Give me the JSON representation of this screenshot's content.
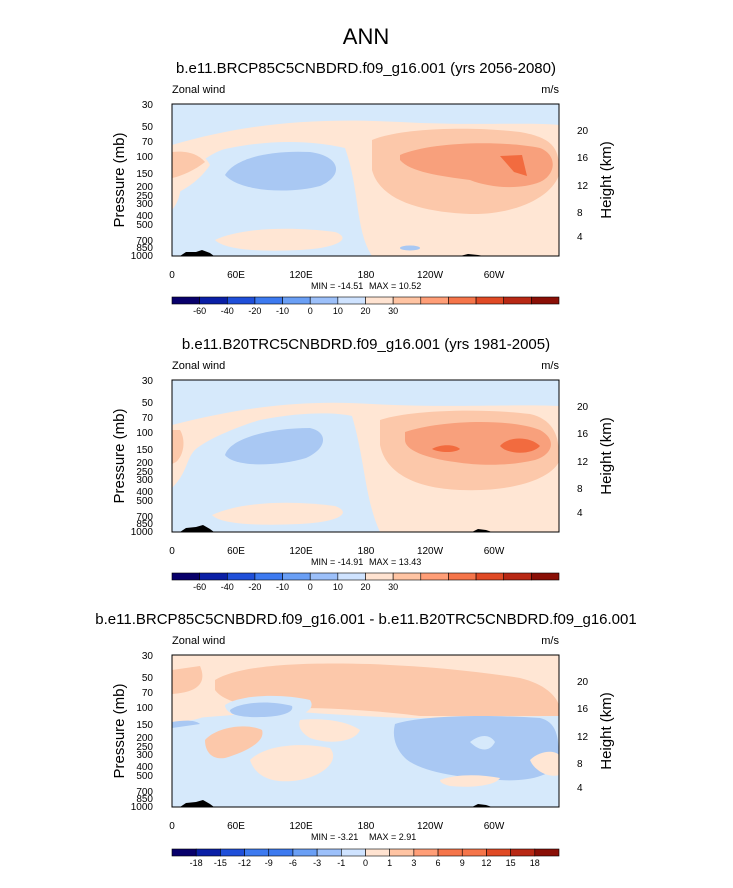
{
  "figure": {
    "title": "ANN",
    "variable_label": "Zonal wind",
    "units_label": "m/s"
  },
  "chart_data": [
    {
      "type": "heatmap",
      "title": "b.e11.BRCP85C5CNBDRD.f09_g16.001 (yrs 2056-2080)",
      "variable": "Zonal wind",
      "units": "m/s",
      "xlabel": "",
      "ylabel": "Pressure (mb)",
      "ylabel_right": "Height (km)",
      "x_ticks": [
        "0",
        "60E",
        "120E",
        "180",
        "120W",
        "60W"
      ],
      "y_ticks": [
        "30",
        "50",
        "70",
        "100",
        "150",
        "200",
        "250",
        "300",
        "400",
        "500",
        "700",
        "850",
        "1000"
      ],
      "y_right_ticks": [
        "20",
        "16",
        "12",
        "8",
        "4"
      ],
      "min_text": "MIN = -14.51",
      "max_text": "MAX =  10.52",
      "min": -14.51,
      "max": 10.52,
      "colorbar_ticks": [
        "-60",
        "-40",
        "-20",
        "-10",
        "0",
        "10",
        "20",
        "30"
      ]
    },
    {
      "type": "heatmap",
      "title": "b.e11.B20TRC5CNBDRD.f09_g16.001 (yrs 1981-2005)",
      "variable": "Zonal wind",
      "units": "m/s",
      "xlabel": "",
      "ylabel": "Pressure (mb)",
      "ylabel_right": "Height (km)",
      "x_ticks": [
        "0",
        "60E",
        "120E",
        "180",
        "120W",
        "60W"
      ],
      "y_ticks": [
        "30",
        "50",
        "70",
        "100",
        "150",
        "200",
        "250",
        "300",
        "400",
        "500",
        "700",
        "850",
        "1000"
      ],
      "y_right_ticks": [
        "20",
        "16",
        "12",
        "8",
        "4"
      ],
      "min_text": "MIN = -14.91",
      "max_text": "MAX =  13.43",
      "min": -14.91,
      "max": 13.43,
      "colorbar_ticks": [
        "-60",
        "-40",
        "-20",
        "-10",
        "0",
        "10",
        "20",
        "30"
      ]
    },
    {
      "type": "heatmap",
      "title": "b.e11.BRCP85C5CNBDRD.f09_g16.001 - b.e11.B20TRC5CNBDRD.f09_g16.001",
      "variable": "Zonal wind",
      "units": "m/s",
      "xlabel": "",
      "ylabel": "Pressure (mb)",
      "ylabel_right": "Height (km)",
      "x_ticks": [
        "0",
        "60E",
        "120E",
        "180",
        "120W",
        "60W"
      ],
      "y_ticks": [
        "30",
        "50",
        "70",
        "100",
        "150",
        "200",
        "250",
        "300",
        "400",
        "500",
        "700",
        "850",
        "1000"
      ],
      "y_right_ticks": [
        "20",
        "16",
        "12",
        "8",
        "4"
      ],
      "min_text": "MIN = -3.21",
      "max_text": "MAX =  2.91",
      "min": -3.21,
      "max": 2.91,
      "colorbar_ticks": [
        "-18",
        "-15",
        "-12",
        "-9",
        "-6",
        "-3",
        "-1",
        "0",
        "1",
        "3",
        "6",
        "9",
        "12",
        "15",
        "18"
      ]
    }
  ],
  "colors": {
    "colorbar": [
      "#08006b",
      "#0a1fa6",
      "#1f4fd9",
      "#3d7af0",
      "#6a9ff5",
      "#9cc0fa",
      "#cfe3ff",
      "#ffe3d1",
      "#ffc4a3",
      "#ff9e77",
      "#f5754a",
      "#e04a25",
      "#b82814",
      "#8a0f06"
    ],
    "light_blue": "#d6e9fb",
    "mid_blue": "#a9c8f3",
    "light_peach": "#ffe6d4",
    "peach": "#fcc8aa",
    "orange": "#f8a07c",
    "deep_orange": "#f26b3f",
    "terrain": "#000000"
  }
}
